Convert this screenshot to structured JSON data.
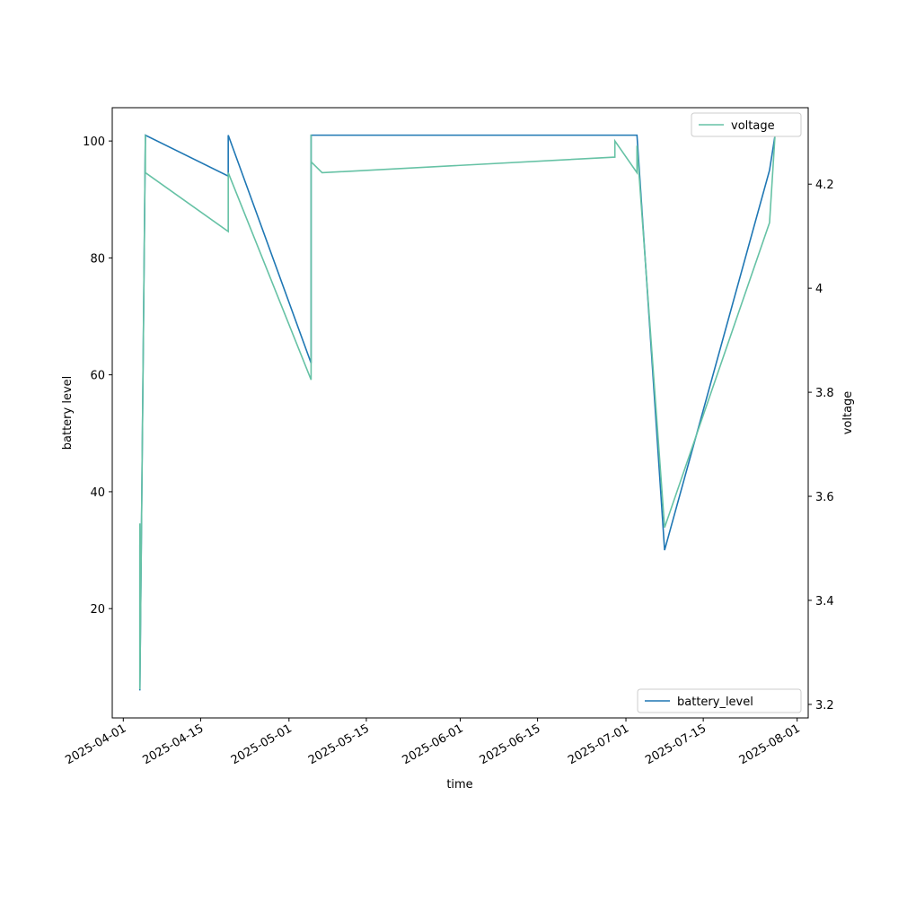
{
  "chart_data": {
    "type": "line",
    "xlabel": "time",
    "ylabel": "battery level",
    "y2label": "voltage",
    "xlim": [
      "2025-03-30",
      "2025-08-03"
    ],
    "xticks": [
      "2025-04-01",
      "2025-04-15",
      "2025-05-01",
      "2025-05-15",
      "2025-06-01",
      "2025-06-15",
      "2025-07-01",
      "2025-07-15",
      "2025-08-01"
    ],
    "ylim": [
      1.3,
      105.7
    ],
    "yticks": [
      20,
      40,
      60,
      80,
      100
    ],
    "y2lim": [
      3.174,
      4.347
    ],
    "y2ticks": [
      3.2,
      3.4,
      3.6,
      3.8,
      4.0,
      4.2
    ],
    "series": [
      {
        "name": "battery_level",
        "color": "#1f77b4",
        "legend": "lower right",
        "x": [
          "2025-04-04",
          "2025-04-04",
          "2025-04-05",
          "2025-04-20",
          "2025-04-20",
          "2025-05-05",
          "2025-05-05",
          "2025-07-03",
          "2025-07-08",
          "2025-07-27",
          "2025-07-28"
        ],
        "values": [
          31,
          6,
          101,
          94,
          101,
          62,
          101,
          101,
          30,
          95,
          101
        ]
      },
      {
        "name": "voltage",
        "color": "#66c2a5",
        "axis": "y2",
        "legend": "upper right",
        "x": [
          "2025-04-04",
          "2025-04-04",
          "2025-04-05",
          "2025-04-05",
          "2025-04-20",
          "2025-04-20",
          "2025-05-05",
          "2025-05-05",
          "2025-05-05",
          "2025-05-07",
          "2025-06-29",
          "2025-06-29",
          "2025-07-03",
          "2025-07-03",
          "2025-07-08",
          "2025-07-27",
          "2025-07-28"
        ],
        "values": [
          3.548,
          3.229,
          4.295,
          4.222,
          4.109,
          4.222,
          3.824,
          4.295,
          4.243,
          4.222,
          4.252,
          4.283,
          4.222,
          4.274,
          3.54,
          4.126,
          4.295
        ]
      }
    ]
  }
}
